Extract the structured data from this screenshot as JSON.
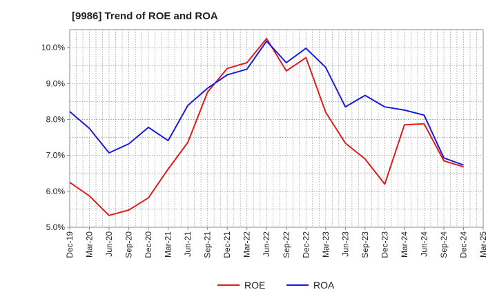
{
  "chart_data": {
    "type": "line",
    "title": "[9986]  Trend of ROE and ROA",
    "x": [
      "Dec-19",
      "Mar-20",
      "Jun-20",
      "Sep-20",
      "Dec-20",
      "Mar-21",
      "Jun-21",
      "Sep-21",
      "Dec-21",
      "Mar-22",
      "Jun-22",
      "Sep-22",
      "Dec-22",
      "Mar-23",
      "Jun-23",
      "Sep-23",
      "Dec-23",
      "Mar-24",
      "Jun-24",
      "Sep-24",
      "Dec-24",
      "Mar-25"
    ],
    "y_ticks": [
      "5.0%",
      "6.0%",
      "7.0%",
      "8.0%",
      "9.0%",
      "10.0%"
    ],
    "ylim": [
      5.0,
      10.5
    ],
    "grid": true,
    "legend_position": "bottom",
    "series": [
      {
        "name": "ROE",
        "color": "#e31a1c",
        "values": [
          6.25,
          5.87,
          5.33,
          5.48,
          5.82,
          6.62,
          7.36,
          8.76,
          9.42,
          9.58,
          10.25,
          9.35,
          9.72,
          8.2,
          7.34,
          6.9,
          6.2,
          7.85,
          7.88,
          6.85,
          6.68,
          null
        ]
      },
      {
        "name": "ROA",
        "color": "#1a1adf",
        "values": [
          8.22,
          7.75,
          7.07,
          7.32,
          7.78,
          7.41,
          8.39,
          8.87,
          9.24,
          9.4,
          10.18,
          9.58,
          9.98,
          9.45,
          8.35,
          8.67,
          8.35,
          8.26,
          8.12,
          6.93,
          6.73,
          null
        ]
      }
    ]
  }
}
